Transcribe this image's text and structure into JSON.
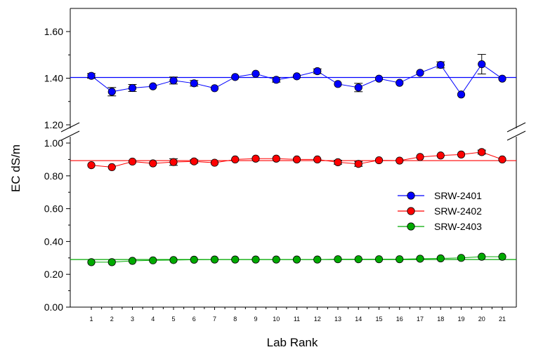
{
  "chart_data": {
    "type": "line",
    "xlabel": "Lab Rank",
    "ylabel": "EC dS/m",
    "x": [
      1,
      2,
      3,
      4,
      5,
      6,
      7,
      8,
      9,
      10,
      11,
      12,
      13,
      14,
      15,
      16,
      17,
      18,
      19,
      20,
      21
    ],
    "x_tick_labels": [
      "1",
      "2",
      "3",
      "4",
      "5",
      "6",
      "7",
      "8",
      "9",
      "10",
      "11",
      "12",
      "13",
      "14",
      "15",
      "16",
      "17",
      "18",
      "19",
      "20",
      "21"
    ],
    "y_axis": {
      "broken": true,
      "lower_range": [
        0.0,
        1.0
      ],
      "upper_range": [
        1.2,
        1.7
      ],
      "tick_labels": [
        "0.00",
        "0.20",
        "0.40",
        "0.60",
        "0.80",
        "1.00",
        "1.20",
        "1.40",
        "1.60"
      ]
    },
    "grid": false,
    "legend_position": "center-right",
    "series": [
      {
        "name": "SRW-2401",
        "color": "#0000ff",
        "reference_line": 1.403,
        "values": [
          1.41,
          1.342,
          1.358,
          1.365,
          1.39,
          1.378,
          1.357,
          1.405,
          1.419,
          1.393,
          1.408,
          1.43,
          1.375,
          1.36,
          1.398,
          1.38,
          1.423,
          1.457,
          1.33,
          1.46,
          1.398
        ],
        "errors": [
          0.01,
          0.018,
          0.015,
          0,
          0.015,
          0.012,
          0,
          0,
          0,
          0.01,
          0,
          0.01,
          0,
          0.018,
          0,
          0,
          0,
          0.013,
          0,
          0.042,
          0
        ]
      },
      {
        "name": "SRW-2402",
        "color": "#ff0000",
        "reference_line": 0.893,
        "values": [
          0.865,
          0.853,
          0.887,
          0.876,
          0.884,
          0.888,
          0.88,
          0.9,
          0.905,
          0.905,
          0.9,
          0.9,
          0.883,
          0.873,
          0.895,
          0.893,
          0.915,
          0.924,
          0.93,
          0.945,
          0.9
        ],
        "errors": [
          0,
          0,
          0,
          0,
          0.02,
          0.01,
          0,
          0,
          0,
          0,
          0,
          0,
          0.012,
          0.015,
          0,
          0,
          0,
          0,
          0,
          0.012,
          0
        ]
      },
      {
        "name": "SRW-2403",
        "color": "#00aa00",
        "reference_line": 0.29,
        "values": [
          0.274,
          0.274,
          0.282,
          0.285,
          0.287,
          0.289,
          0.29,
          0.29,
          0.29,
          0.29,
          0.29,
          0.29,
          0.292,
          0.292,
          0.292,
          0.292,
          0.295,
          0.297,
          0.3,
          0.307,
          0.307
        ],
        "errors": [
          0,
          0,
          0,
          0,
          0,
          0,
          0,
          0,
          0,
          0,
          0,
          0,
          0,
          0,
          0,
          0,
          0,
          0,
          0,
          0,
          0
        ]
      }
    ]
  }
}
